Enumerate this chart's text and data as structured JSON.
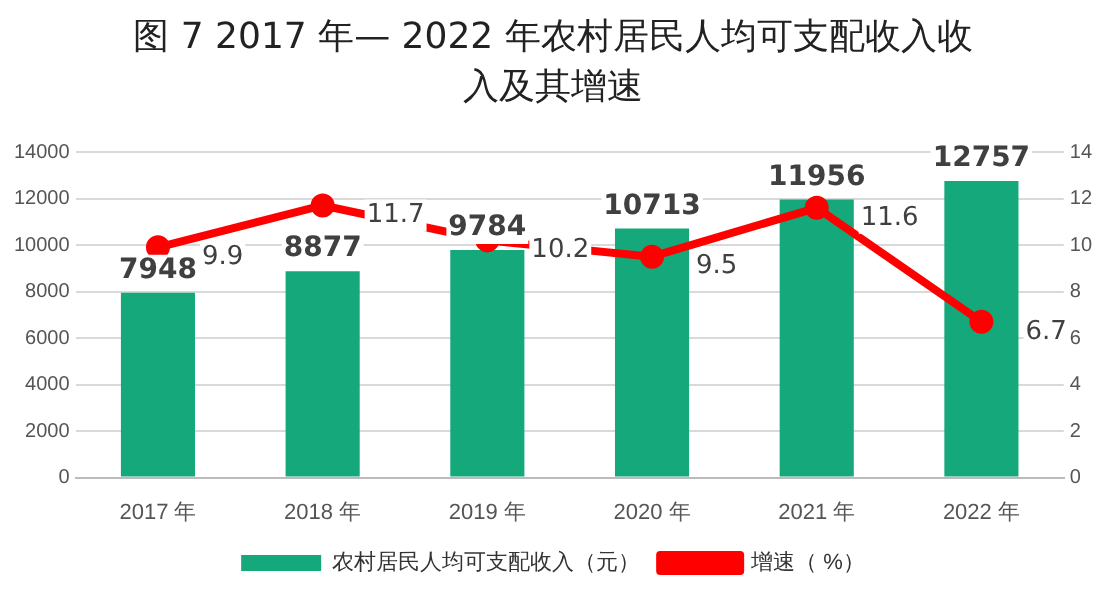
{
  "chart_data": {
    "type": "bar",
    "title": "图 7 2017 年— 2022 年农村居民人均可支配收入收入及其增速",
    "categories": [
      "2017 年",
      "2018 年",
      "2019 年",
      "2020 年",
      "2021 年",
      "2022 年"
    ],
    "series": [
      {
        "name": "农村居民人均可支配收入（元）",
        "color": "#14a87a",
        "values": [
          7948,
          8877,
          9784,
          10713,
          11956,
          12757
        ]
      },
      {
        "name": "增速（ %）",
        "type": "line",
        "axis": "y2",
        "color": "#ff0000",
        "values": [
          9.9,
          11.7,
          10.2,
          9.5,
          11.6,
          6.7
        ]
      }
    ],
    "ylim": [
      0,
      14000
    ],
    "yticks": [
      0,
      2000,
      4000,
      6000,
      8000,
      10000,
      12000,
      14000
    ],
    "y2lim": [
      0,
      14
    ],
    "y2ticks": [
      0,
      2,
      4,
      6,
      8,
      10,
      12,
      14
    ],
    "grid": "y",
    "legend": "bottom",
    "marker": "circle",
    "line_style": "solid",
    "data_labels": true
  }
}
